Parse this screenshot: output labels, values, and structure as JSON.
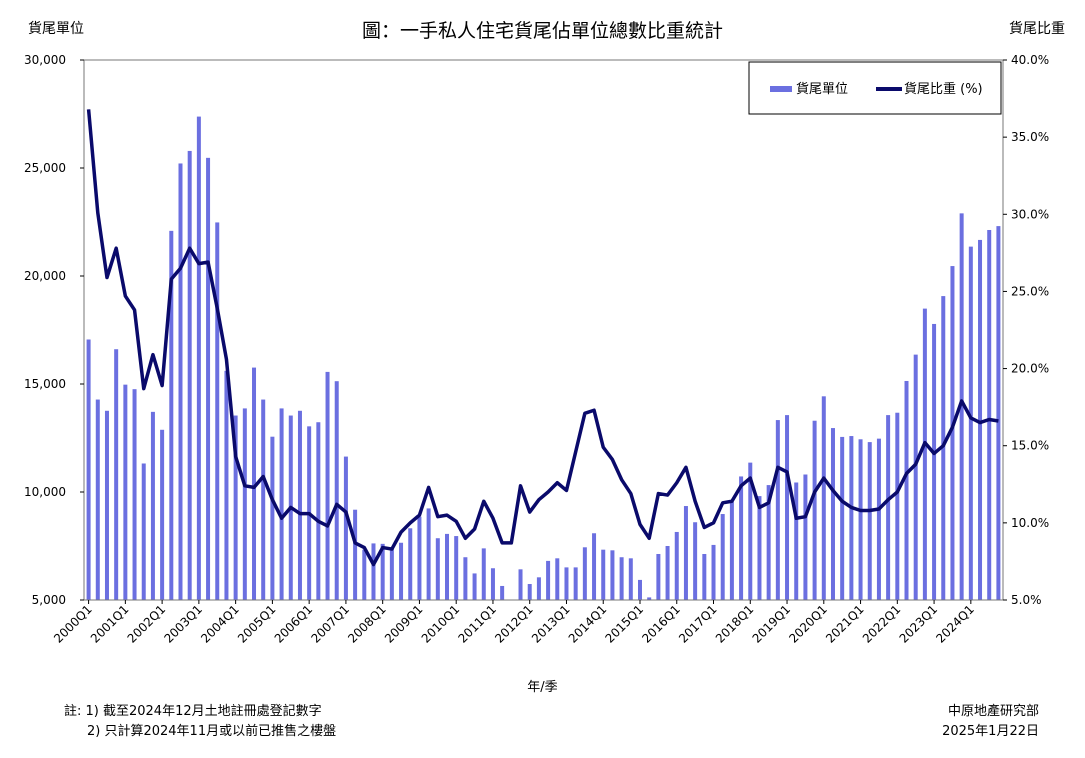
{
  "chart_data": {
    "type": "bar+line",
    "title": "圖：一手私人住宅貨尾佔單位總數比重統計",
    "ylabel_left": "貨尾單位",
    "ylabel_right": "貨尾比重",
    "xlabel": "年/季",
    "ylim_left": [
      5000,
      30000
    ],
    "ylim_right": [
      5,
      40
    ],
    "yticks_left": [
      "5,000",
      "10,000",
      "15,000",
      "20,000",
      "25,000",
      "30,000"
    ],
    "yticks_right": [
      "5.0%",
      "10.0%",
      "15.0%",
      "20.0%",
      "25.0%",
      "30.0%",
      "35.0%",
      "40.0%"
    ],
    "grid": false,
    "legend_position": "top-right",
    "colors": {
      "bar": "#6b6fe0",
      "line": "#0a0a6b"
    },
    "x_start": "2000Q1",
    "x_tick_labels": [
      "2000Q1",
      "2001Q1",
      "2002Q1",
      "2003Q1",
      "2004Q1",
      "2005Q1",
      "2006Q1",
      "2007Q1",
      "2008Q1",
      "2009Q1",
      "2010Q1",
      "2011Q1",
      "2012Q1",
      "2013Q1",
      "2014Q1",
      "2015Q1",
      "2016Q1",
      "2017Q1",
      "2018Q1",
      "2019Q1",
      "2020Q1",
      "2021Q1",
      "2022Q1",
      "2023Q1",
      "2024Q1"
    ],
    "series": [
      {
        "name": "貨尾單位",
        "type": "bar",
        "axis": "left",
        "values": [
          17060,
          14280,
          13760,
          16610,
          14970,
          14760,
          11320,
          13710,
          12880,
          22090,
          25210,
          25790,
          27380,
          25470,
          22480,
          15610,
          13540,
          13870,
          15760,
          14280,
          12560,
          13870,
          13540,
          13760,
          13040,
          13230,
          15560,
          15130,
          11640,
          9180,
          7330,
          7620,
          7600,
          7400,
          7650,
          8320,
          8860,
          9240,
          7860,
          8060,
          7960,
          6980,
          6230,
          7390,
          6470,
          5650,
          5000,
          6420,
          5740,
          6050,
          6810,
          6930,
          6510,
          6510,
          7440,
          8090,
          7330,
          7300,
          6980,
          6930,
          5930,
          5120,
          7130,
          7500,
          8150,
          9350,
          8600,
          7130,
          7550,
          8980,
          9550,
          10720,
          11360,
          9810,
          10320,
          13330,
          13560,
          10440,
          10810,
          13300,
          14430,
          12960,
          12550,
          12590,
          12440,
          12310,
          12470,
          13560,
          13670,
          15140,
          16360,
          18490,
          17780,
          19070,
          20460,
          22900,
          21360,
          21670,
          22130,
          22310
        ]
      },
      {
        "name": "貨尾比重 (%)",
        "type": "line",
        "axis": "right",
        "values": [
          36.8,
          30.1,
          25.9,
          27.8,
          24.7,
          23.8,
          18.7,
          20.9,
          18.9,
          25.8,
          26.5,
          27.8,
          26.8,
          26.9,
          23.9,
          20.6,
          14.3,
          12.4,
          12.3,
          13.0,
          11.5,
          10.3,
          11.0,
          10.6,
          10.6,
          10.1,
          9.8,
          11.2,
          10.7,
          8.7,
          8.4,
          7.3,
          8.4,
          8.3,
          9.4,
          10.0,
          10.5,
          12.3,
          10.4,
          10.5,
          10.1,
          9.0,
          9.6,
          11.4,
          10.3,
          8.7,
          8.7,
          12.4,
          10.7,
          11.5,
          12.0,
          12.6,
          12.1,
          14.6,
          17.1,
          17.3,
          14.9,
          14.1,
          12.8,
          11.9,
          9.9,
          9.0,
          11.9,
          11.8,
          12.6,
          13.6,
          11.4,
          9.7,
          10.0,
          11.3,
          11.4,
          12.4,
          12.9,
          11.0,
          11.3,
          13.6,
          13.3,
          10.3,
          10.4,
          12.0,
          12.9,
          12.1,
          11.4,
          11.0,
          10.8,
          10.8,
          10.9,
          11.5,
          12.0,
          13.2,
          13.8,
          15.2,
          14.5,
          15.0,
          16.2,
          17.9,
          16.8,
          16.5,
          16.7,
          16.6
        ]
      }
    ]
  },
  "notes": {
    "line1": "註: 1) 截至2024年12月土地註冊處登記數字",
    "line2": "2) 只計算2024年11月或以前已推售之樓盤"
  },
  "source": {
    "org": "中原地產研究部",
    "date": "2025年1月22日"
  }
}
